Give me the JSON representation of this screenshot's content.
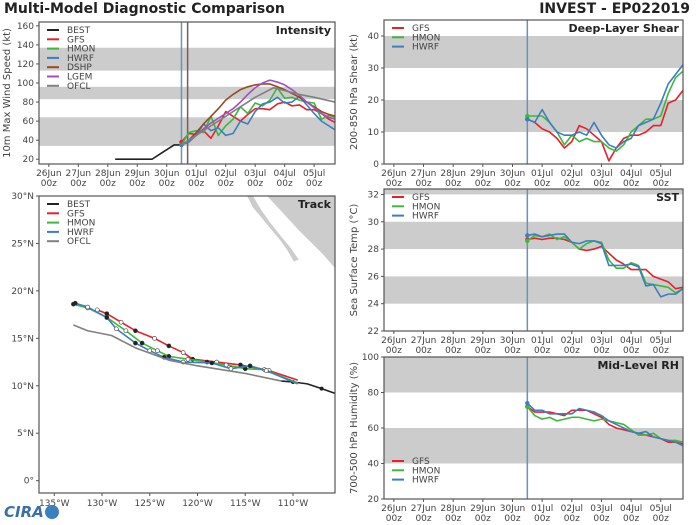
{
  "header": {
    "title": "Multi-Model Diagnostic Comparison",
    "storm": "INVEST - EP022019"
  },
  "logo_text": "CIRA",
  "colors": {
    "BEST": "#222222",
    "GFS": "#e8202a",
    "HMON": "#3cb83c",
    "HWRF": "#3a7fc0",
    "DSHP": "#9a4a1e",
    "LGEM": "#a050c0",
    "OFCL": "#808080",
    "band": "#cccccc",
    "init_line": "#6b93b8",
    "ofcl_line": "#7a5a5a"
  },
  "date_ticks": {
    "days": [
      "26Jun",
      "27Jun",
      "28Jun",
      "29Jun",
      "30Jun",
      "01Jul",
      "02Jul",
      "03Jul",
      "04Jul",
      "05Jul"
    ],
    "hour": "00z",
    "dates": [
      "2019-06-26T00",
      "2019-06-27T00",
      "2019-06-28T00",
      "2019-06-29T00",
      "2019-06-30T00",
      "2019-07-01T00",
      "2019-07-02T00",
      "2019-07-03T00",
      "2019-07-04T00",
      "2019-07-05T00"
    ]
  },
  "model_times": [
    "2019-06-30T12",
    "2019-06-30T18",
    "2019-07-01T00",
    "2019-07-01T06",
    "2019-07-01T12",
    "2019-07-01T18",
    "2019-07-02T00",
    "2019-07-02T06",
    "2019-07-02T12",
    "2019-07-02T18",
    "2019-07-03T00",
    "2019-07-03T06",
    "2019-07-03T12",
    "2019-07-03T18",
    "2019-07-04T00",
    "2019-07-04T06",
    "2019-07-04T12",
    "2019-07-04T18",
    "2019-07-05T00",
    "2019-07-05T06",
    "2019-07-05T12",
    "2019-07-05T18"
  ],
  "chart_data": [
    {
      "type": "line",
      "title": "Intensity",
      "ylabel": "10m Max Wind Speed (kt)",
      "xlim": [
        "2019-06-25T16",
        "2019-07-05T17"
      ],
      "ylim": [
        15,
        164
      ],
      "yticks": [
        20,
        40,
        60,
        80,
        100,
        120,
        140,
        160
      ],
      "bands": [
        [
          34,
          64
        ],
        [
          83,
          96
        ],
        [
          113,
          137
        ]
      ],
      "vlines": [
        {
          "t": "2019-06-30T12",
          "color": "init_line"
        },
        {
          "t": "2019-06-30T17",
          "color": "ofcl_line"
        }
      ],
      "legend": "top-left",
      "series": [
        {
          "name": "BEST",
          "times": [
            "2019-06-28T06",
            "2019-06-28T12",
            "2019-06-28T18",
            "2019-06-29T00",
            "2019-06-29T06",
            "2019-06-29T12",
            "2019-06-29T18",
            "2019-06-30T00",
            "2019-06-30T06",
            "2019-06-30T12"
          ],
          "values": [
            20,
            20,
            20,
            20,
            20,
            20,
            25,
            30,
            35,
            35
          ]
        },
        {
          "name": "GFS",
          "values": [
            38,
            47,
            46,
            50,
            42,
            55,
            70,
            65,
            60,
            67,
            73,
            73,
            72,
            78,
            80,
            76,
            77,
            72,
            72,
            68,
            62,
            58
          ]
        },
        {
          "name": "HMON",
          "values": [
            35,
            48,
            50,
            48,
            65,
            45,
            55,
            62,
            75,
            68,
            79,
            76,
            82,
            95,
            84,
            85,
            82,
            80,
            79,
            62,
            66,
            64
          ]
        },
        {
          "name": "HWRF",
          "values": [
            35,
            38,
            45,
            57,
            50,
            53,
            45,
            47,
            60,
            57,
            70,
            78,
            80,
            85,
            79,
            80,
            86,
            77,
            68,
            60,
            55,
            50
          ]
        },
        {
          "name": "DSHP",
          "values": [
            35,
            40,
            48,
            57,
            65,
            73,
            82,
            88,
            93,
            96,
            98,
            99,
            99,
            96,
            93,
            89,
            85,
            80,
            75,
            70,
            67,
            65
          ]
        },
        {
          "name": "LGEM",
          "values": [
            35,
            40,
            45,
            52,
            58,
            63,
            68,
            73,
            80,
            88,
            95,
            100,
            103,
            101,
            98,
            93,
            87,
            80,
            74,
            68,
            64,
            62
          ]
        },
        {
          "name": "OFCL",
          "times": [
            "2019-06-30T12",
            "2019-07-01T00",
            "2019-07-01T12",
            "2019-07-02T00",
            "2019-07-02T12",
            "2019-07-03T00",
            "2019-07-03T15",
            "2019-07-04T00",
            "2019-07-04T12",
            "2019-07-05T00",
            "2019-07-05T17"
          ],
          "values": [
            35,
            45,
            55,
            65,
            75,
            85,
            95,
            92,
            88,
            85,
            80
          ]
        }
      ]
    },
    {
      "type": "line",
      "title": "Deep-Layer Shear",
      "ylabel": "200-850 hPa Shear (kt)",
      "xlim": [
        "2019-06-25T16",
        "2019-07-05T18"
      ],
      "ylim": [
        0,
        45
      ],
      "yticks": [
        0,
        10,
        20,
        30,
        40
      ],
      "bands": [
        [
          10,
          20
        ],
        [
          30,
          40
        ]
      ],
      "vlines": [
        {
          "t": "2019-06-30T12",
          "color": "init_line"
        }
      ],
      "legend": "top-left",
      "series": [
        {
          "name": "GFS",
          "values": [
            14,
            13,
            11,
            10,
            8,
            5,
            7,
            12,
            11,
            9,
            7,
            1,
            5,
            8,
            9,
            9,
            10,
            12,
            12,
            19,
            20,
            23
          ]
        },
        {
          "name": "HMON",
          "values": [
            15,
            15,
            15,
            13,
            10,
            6,
            9,
            7,
            8,
            7,
            7,
            5,
            4,
            6,
            10,
            12,
            14,
            14,
            15,
            22,
            27,
            29
          ]
        },
        {
          "name": "HWRF",
          "values": [
            14,
            13,
            17,
            13,
            10,
            9,
            9,
            10,
            9,
            13,
            9,
            6,
            5,
            7,
            8,
            12,
            13,
            14,
            19,
            25,
            28,
            31
          ]
        }
      ]
    },
    {
      "type": "line",
      "title": "SST",
      "ylabel": "Sea Surface Temp (°C)",
      "xlim": [
        "2019-06-25T16",
        "2019-07-05T18"
      ],
      "ylim": [
        22,
        32.4
      ],
      "yticks": [
        22,
        24,
        26,
        28,
        30,
        32
      ],
      "bands": [
        [
          24,
          26
        ],
        [
          28,
          30
        ],
        [
          32,
          32.4
        ]
      ],
      "vlines": [
        {
          "t": "2019-06-30T12",
          "color": "init_line"
        }
      ],
      "legend": "top-left",
      "series": [
        {
          "name": "GFS",
          "values": [
            28.7,
            28.8,
            28.7,
            28.8,
            28.8,
            28.7,
            28.5,
            28.0,
            27.9,
            28.0,
            28.2,
            27.7,
            27.2,
            26.9,
            26.5,
            26.5,
            26.5,
            26.0,
            25.8,
            25.6,
            25.1,
            25.2
          ]
        },
        {
          "name": "HMON",
          "values": [
            28.6,
            29.0,
            28.9,
            29.1,
            28.7,
            28.9,
            28.5,
            28.0,
            28.4,
            28.6,
            28.5,
            27.2,
            26.6,
            26.6,
            27.0,
            26.8,
            25.5,
            25.4,
            25.3,
            25.2,
            24.8,
            25.1
          ]
        },
        {
          "name": "HWRF",
          "values": [
            29.0,
            29.1,
            28.9,
            29.0,
            29.1,
            29.1,
            28.5,
            28.4,
            28.6,
            28.6,
            28.4,
            26.8,
            26.8,
            26.8,
            26.9,
            26.7,
            25.3,
            25.4,
            24.5,
            24.7,
            24.7,
            25.1
          ]
        }
      ]
    },
    {
      "type": "line",
      "title": "Mid-Level RH",
      "ylabel": "700-500 hPa Humidity (%)",
      "xlim": [
        "2019-06-25T16",
        "2019-07-05T18"
      ],
      "ylim": [
        20,
        100
      ],
      "yticks": [
        20,
        40,
        60,
        80,
        100
      ],
      "bands": [
        [
          40,
          60
        ],
        [
          80,
          100
        ]
      ],
      "vlines": [
        {
          "t": "2019-06-30T12",
          "color": "init_line"
        }
      ],
      "legend": "bottom-left",
      "series": [
        {
          "name": "GFS",
          "values": [
            72,
            69,
            69,
            69,
            68,
            67,
            70,
            70,
            70,
            68,
            66,
            62,
            60,
            59,
            58,
            57,
            56,
            55,
            54,
            52,
            52,
            51
          ]
        },
        {
          "name": "HMON",
          "values": [
            72,
            67,
            65,
            66,
            64,
            65,
            66,
            66,
            65,
            64,
            65,
            64,
            63,
            62,
            59,
            56,
            56,
            57,
            54,
            53,
            53,
            52
          ]
        },
        {
          "name": "HWRF",
          "values": [
            74,
            70,
            70,
            68,
            68,
            68,
            68,
            71,
            70,
            69,
            67,
            64,
            62,
            60,
            58,
            57,
            58,
            55,
            54,
            53,
            52,
            50
          ]
        }
      ]
    },
    {
      "type": "line",
      "title": "Track",
      "subtype": "map",
      "xlim": [
        -136.6,
        -105.6
      ],
      "ylim": [
        -1.3,
        30
      ],
      "xticks": [
        -135,
        -130,
        -125,
        -120,
        -115,
        -110
      ],
      "xticklabels": [
        "135°W",
        "130°W",
        "125°W",
        "120°W",
        "115°W",
        "110°W"
      ],
      "yticks": [
        0,
        5,
        10,
        15,
        20,
        25,
        30
      ],
      "yticklabels": [
        "0°",
        "5°N",
        "10°N",
        "15°N",
        "20°N",
        "25°N",
        "30°N"
      ],
      "legend": "top-left",
      "series": [
        {
          "name": "BEST",
          "lon": [
            -105.6,
            -107,
            -108.5,
            -110,
            -111.2
          ],
          "lat": [
            9.2,
            9.7,
            10.2,
            10.4,
            10.5
          ]
        },
        {
          "name": "GFS",
          "lon": [
            -109.5,
            -112.5,
            -115.5,
            -118,
            -120.5,
            -121.5,
            -123,
            -124.5,
            -126.5,
            -128,
            -129.5,
            -130.5
          ],
          "lat": [
            10.6,
            11.6,
            12.2,
            12.5,
            12.8,
            13.5,
            14.2,
            15,
            15.8,
            16.7,
            17.6,
            18
          ]
        },
        {
          "name": "HMON",
          "lon": [
            -109.5,
            -113,
            -115,
            -117,
            -119,
            -121,
            -123,
            -124.2,
            -125.8,
            -127.5,
            -129.5,
            -131.5,
            -133
          ],
          "lat": [
            10.3,
            11.7,
            11.8,
            12.2,
            12.5,
            12.8,
            13.1,
            13.7,
            14.5,
            15.8,
            17.2,
            18.2,
            18.6
          ]
        },
        {
          "name": "HWRF",
          "lon": [
            -109.5,
            -112.8,
            -114.5,
            -116.5,
            -118.5,
            -121.5,
            -123.5,
            -125,
            -126.5,
            -128.5,
            -129.5,
            -131.5,
            -132.8
          ],
          "lat": [
            10.2,
            11.6,
            12.1,
            11.8,
            12.4,
            12.5,
            13,
            13.7,
            14.5,
            16,
            17.2,
            18.3,
            18.7
          ]
        },
        {
          "name": "OFCL",
          "lon": [
            -111.2,
            -115,
            -120,
            -123,
            -126.5,
            -129,
            -131.5,
            -133
          ],
          "lat": [
            10.5,
            11.3,
            12.1,
            12.7,
            14,
            15.3,
            15.8,
            16.4
          ]
        }
      ]
    }
  ]
}
